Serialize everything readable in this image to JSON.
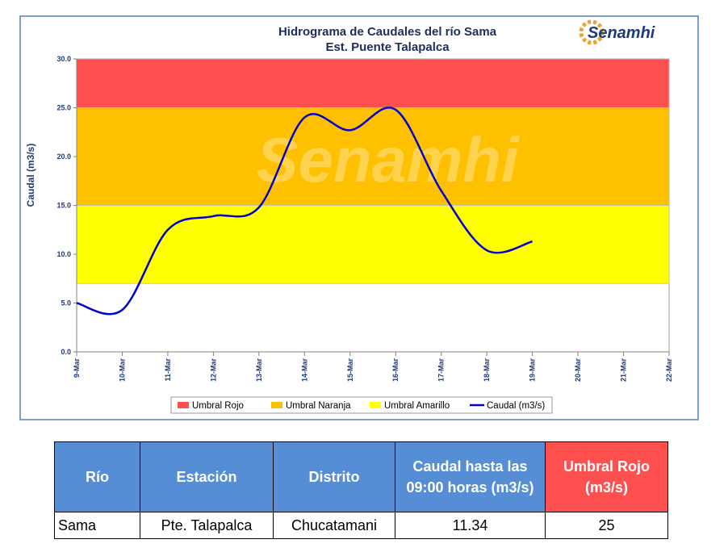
{
  "chart_data": {
    "type": "line",
    "title": "Hidrograma de Caudales del río Sama",
    "subtitle": "Est. Puente Talapalca",
    "logo": "Senamhi",
    "ylabel": "Caudal (m3/s)",
    "categories": [
      "9-Mar",
      "10-Mar",
      "11-Mar",
      "12-Mar",
      "13-Mar",
      "14-Mar",
      "15-Mar",
      "16-Mar",
      "17-Mar",
      "18-Mar",
      "19-Mar",
      "20-Mar",
      "21-Mar",
      "22-Mar"
    ],
    "series": [
      {
        "name": "Caudal (m3/s)",
        "color": "#0000cc",
        "values": [
          5.0,
          4.3,
          12.5,
          13.9,
          14.8,
          24.0,
          22.7,
          24.8,
          16.5,
          10.4,
          11.3,
          null,
          null,
          null
        ]
      }
    ],
    "bands": [
      {
        "name": "Umbral Rojo",
        "color": "#ff5050",
        "from": 25,
        "to": 30
      },
      {
        "name": "Umbral Naranja",
        "color": "#ffc000",
        "from": 15,
        "to": 25
      },
      {
        "name": "Umbral Amarillo",
        "color": "#ffff00",
        "from": 7,
        "to": 15
      }
    ],
    "ylim": [
      0,
      30
    ],
    "yticks": [
      {
        "value": 0,
        "label": "0.0"
      },
      {
        "value": 5,
        "label": "5.0"
      },
      {
        "value": 10,
        "label": "10.0"
      },
      {
        "value": 15,
        "label": "15.0"
      },
      {
        "value": 20,
        "label": "20.0"
      },
      {
        "value": 25,
        "label": "25.0"
      },
      {
        "value": 30,
        "label": "30.0"
      }
    ],
    "legend": "bottom"
  },
  "table": {
    "header": [
      "Río",
      "Estación",
      "Distrito",
      "Caudal hasta las 09:00 horas (m3/s)",
      "Umbral  Rojo (m3/s)"
    ],
    "rows": [
      [
        "Sama",
        "Pte. Talapalca",
        "Chucatamani",
        "11.34",
        "25"
      ]
    ]
  }
}
